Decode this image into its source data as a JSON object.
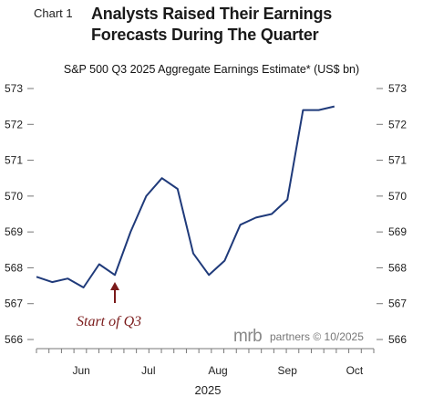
{
  "header": {
    "chart_label": "Chart 1",
    "title_line1": "Analysts Raised Their Earnings",
    "title_line2": "Forecasts During The Quarter"
  },
  "chart_data": {
    "type": "line",
    "title": "S&P 500 Q3 2025 Aggregate Earnings Estimate* (US$ bn)",
    "xlabel": "2025",
    "ylabel": "",
    "ylim": [
      566,
      573
    ],
    "yticks": [
      566,
      567,
      568,
      569,
      570,
      571,
      572,
      573
    ],
    "xticks": [
      "Jun",
      "Jul",
      "Aug",
      "Sep",
      "Oct"
    ],
    "x_week_ticks": 28,
    "series": [
      {
        "color": "#1f3a7a",
        "x": [
          "2025-05-26",
          "2025-06-02",
          "2025-06-09",
          "2025-06-16",
          "2025-06-23",
          "2025-06-30",
          "2025-07-07",
          "2025-07-14",
          "2025-07-21",
          "2025-07-28",
          "2025-08-04",
          "2025-08-11",
          "2025-08-18",
          "2025-08-25",
          "2025-09-01",
          "2025-09-08",
          "2025-09-15",
          "2025-09-22",
          "2025-09-29",
          "2025-10-06",
          "2025-10-13"
        ],
        "values": [
          567.75,
          567.6,
          567.7,
          567.45,
          568.1,
          567.8,
          569.0,
          570.0,
          570.5,
          570.2,
          568.4,
          567.8,
          568.2,
          569.2,
          569.4,
          569.5,
          569.9,
          572.4,
          572.4,
          572.5,
          null
        ]
      }
    ],
    "annotation": {
      "text": "Start of Q3",
      "x": "2025-06-30",
      "color": "#7a1a1a"
    },
    "grid": false,
    "legend": "none"
  },
  "source": {
    "brand_mrb": "mrb",
    "brand_rest": "partners © 10/2025"
  }
}
